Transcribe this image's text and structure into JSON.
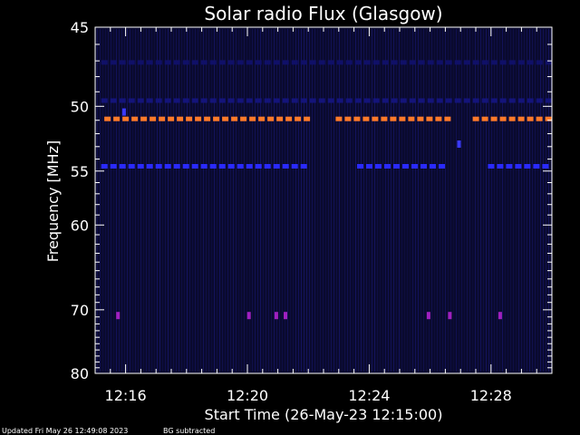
{
  "chart_data": {
    "type": "heatmap",
    "title": "Solar radio Flux (Glasgow)",
    "xlabel": "Start Time (26-May-23 12:15:00)",
    "ylabel": "Frequency [MHz]",
    "x_ticks": [
      "12:16",
      "12:20",
      "12:24",
      "12:28"
    ],
    "x_tick_minutes": [
      16,
      20,
      24,
      28
    ],
    "x_range_minutes": [
      15.0,
      30.0
    ],
    "y_ticks": [
      45,
      50,
      55,
      60,
      70,
      80
    ],
    "y_range": [
      45,
      80
    ],
    "y_scale": "reciprocal",
    "grid": false,
    "background_color": "#0a0a2e",
    "features": [
      {
        "freq_mhz": 50.9,
        "t_start": 15.3,
        "t_end": 22.0,
        "color": "#ff7a2a",
        "kind": "dashed-band"
      },
      {
        "freq_mhz": 50.9,
        "t_start": 22.9,
        "t_end": 26.7,
        "color": "#ff7a2a",
        "kind": "dashed-band"
      },
      {
        "freq_mhz": 50.9,
        "t_start": 27.4,
        "t_end": 30.0,
        "color": "#ff7a2a",
        "kind": "dashed-band"
      },
      {
        "freq_mhz": 54.6,
        "t_start": 15.2,
        "t_end": 22.0,
        "color": "#2a2aff",
        "kind": "dashed-band"
      },
      {
        "freq_mhz": 54.6,
        "t_start": 23.6,
        "t_end": 26.6,
        "color": "#2a2aff",
        "kind": "dashed-band"
      },
      {
        "freq_mhz": 54.6,
        "t_start": 27.9,
        "t_end": 30.0,
        "color": "#2a2aff",
        "kind": "dashed-band"
      },
      {
        "freq_mhz": 49.6,
        "t_start": 15.2,
        "t_end": 30.0,
        "color": "#14147a",
        "kind": "dashed-band"
      },
      {
        "freq_mhz": 47.1,
        "t_start": 15.2,
        "t_end": 30.0,
        "color": "#101068",
        "kind": "dashed-band"
      }
    ],
    "spots": [
      {
        "t": 15.75,
        "freq_mhz": 70.8,
        "color": "#a020c0"
      },
      {
        "t": 20.05,
        "freq_mhz": 70.8,
        "color": "#a020c0"
      },
      {
        "t": 20.95,
        "freq_mhz": 70.8,
        "color": "#a020c0"
      },
      {
        "t": 21.25,
        "freq_mhz": 70.8,
        "color": "#a020c0"
      },
      {
        "t": 25.95,
        "freq_mhz": 70.8,
        "color": "#a020c0"
      },
      {
        "t": 26.65,
        "freq_mhz": 70.8,
        "color": "#a020c0"
      },
      {
        "t": 28.3,
        "freq_mhz": 70.8,
        "color": "#a020c0"
      },
      {
        "t": 26.95,
        "freq_mhz": 52.8,
        "color": "#3a3aff"
      },
      {
        "t": 15.95,
        "freq_mhz": 50.4,
        "color": "#3a3aff"
      }
    ]
  },
  "footer": {
    "updated": "Updated Fri May 26 12:49:08 2023",
    "bg_note": "BG subtracted"
  }
}
